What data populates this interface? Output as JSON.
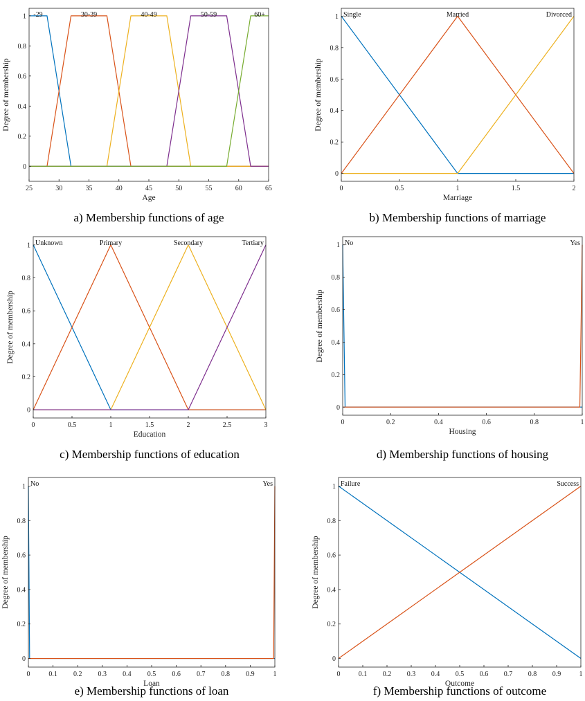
{
  "series_colors": [
    "#0072BD",
    "#D95319",
    "#EDB120",
    "#7E2F8E",
    "#77AC30"
  ],
  "chart_data": [
    {
      "type": "line",
      "caption": "a) Membership functions of age",
      "xlabel": "Age",
      "ylabel": "Degree of membership",
      "xlim": [
        25,
        65
      ],
      "ylim": [
        -0.1,
        1.05
      ],
      "xticks": [
        25,
        30,
        35,
        40,
        45,
        50,
        55,
        60,
        65
      ],
      "yticks": [
        0,
        0.2,
        0.4,
        0.6,
        0.8,
        1
      ],
      "grid": false,
      "series": [
        {
          "label": "-29",
          "x": [
            25,
            28,
            32,
            65
          ],
          "y": [
            1,
            1,
            0,
            0
          ]
        },
        {
          "label": "30-39",
          "x": [
            25,
            28,
            32,
            38,
            42,
            65
          ],
          "y": [
            0,
            0,
            1,
            1,
            0,
            0
          ]
        },
        {
          "label": "40-49",
          "x": [
            25,
            38,
            42,
            48,
            52,
            65
          ],
          "y": [
            0,
            0,
            1,
            1,
            0,
            0
          ]
        },
        {
          "label": "50-59",
          "x": [
            25,
            48,
            52,
            58,
            62,
            65
          ],
          "y": [
            0,
            0,
            1,
            1,
            0,
            0
          ]
        },
        {
          "label": "60+",
          "x": [
            25,
            58,
            62,
            65
          ],
          "y": [
            0,
            0,
            1,
            1
          ]
        }
      ]
    },
    {
      "type": "line",
      "caption": "b) Membership functions of marriage",
      "xlabel": "Marriage",
      "ylabel": "Degree of membership",
      "xlim": [
        0,
        2
      ],
      "ylim": [
        -0.05,
        1.05
      ],
      "xticks": [
        0,
        0.5,
        1,
        1.5,
        2
      ],
      "yticks": [
        0,
        0.2,
        0.4,
        0.6,
        0.8,
        1
      ],
      "grid": false,
      "series": [
        {
          "label": "Single",
          "x": [
            0,
            1,
            2
          ],
          "y": [
            1,
            0,
            0
          ]
        },
        {
          "label": "Married",
          "x": [
            0,
            1,
            2
          ],
          "y": [
            0,
            1,
            0
          ]
        },
        {
          "label": "Divorced",
          "x": [
            0,
            1,
            2
          ],
          "y": [
            0,
            0,
            1
          ]
        }
      ]
    },
    {
      "type": "line",
      "caption": "c) Membership functions of education",
      "xlabel": "Education",
      "ylabel": "Degree of membership",
      "xlim": [
        0,
        3
      ],
      "ylim": [
        -0.05,
        1.05
      ],
      "xticks": [
        0,
        0.5,
        1,
        1.5,
        2,
        2.5,
        3
      ],
      "yticks": [
        0,
        0.2,
        0.4,
        0.6,
        0.8,
        1
      ],
      "grid": false,
      "series": [
        {
          "label": "Unknown",
          "x": [
            0,
            1,
            3
          ],
          "y": [
            1,
            0,
            0
          ]
        },
        {
          "label": "Primary",
          "x": [
            0,
            1,
            2,
            3
          ],
          "y": [
            0,
            1,
            0,
            0
          ]
        },
        {
          "label": "Secondary",
          "x": [
            0,
            1,
            2,
            3
          ],
          "y": [
            0,
            0,
            1,
            0
          ]
        },
        {
          "label": "Tertiary",
          "x": [
            0,
            2,
            3
          ],
          "y": [
            0,
            0,
            1
          ]
        }
      ]
    },
    {
      "type": "line",
      "caption": "d) Membership functions of housing",
      "xlabel": "Housing",
      "ylabel": "Degree of membership",
      "xlim": [
        0,
        1
      ],
      "ylim": [
        -0.05,
        1.05
      ],
      "xticks": [
        0,
        0.2,
        0.4,
        0.6,
        0.8,
        1
      ],
      "yticks": [
        0,
        0.2,
        0.4,
        0.6,
        0.8,
        1
      ],
      "grid": false,
      "series": [
        {
          "label": "No",
          "x": [
            0,
            0.01,
            1
          ],
          "y": [
            1,
            0,
            0
          ]
        },
        {
          "label": "Yes",
          "x": [
            0,
            0.99,
            1
          ],
          "y": [
            0,
            0,
            1
          ]
        }
      ]
    },
    {
      "type": "line",
      "caption": "e) Membership functions of loan",
      "xlabel": "Loan",
      "ylabel": "Degree of membership",
      "xlim": [
        0,
        1
      ],
      "ylim": [
        -0.05,
        1.05
      ],
      "xticks": [
        0,
        0.1,
        0.2,
        0.3,
        0.4,
        0.5,
        0.6,
        0.7,
        0.8,
        0.9,
        1
      ],
      "yticks": [
        0,
        0.2,
        0.4,
        0.6,
        0.8,
        1
      ],
      "grid": false,
      "series": [
        {
          "label": "No",
          "x": [
            0,
            0.005,
            1
          ],
          "y": [
            1,
            0,
            0
          ]
        },
        {
          "label": "Yes",
          "x": [
            0,
            0.995,
            1
          ],
          "y": [
            0,
            0,
            1
          ]
        }
      ]
    },
    {
      "type": "line",
      "caption": "f) Membership functions of outcome",
      "xlabel": "Outcome",
      "ylabel": "Degree of membership",
      "xlim": [
        0,
        1
      ],
      "ylim": [
        -0.05,
        1.05
      ],
      "xticks": [
        0,
        0.1,
        0.2,
        0.3,
        0.4,
        0.5,
        0.6,
        0.7,
        0.8,
        0.9,
        1
      ],
      "yticks": [
        0,
        0.2,
        0.4,
        0.6,
        0.8,
        1
      ],
      "grid": false,
      "series": [
        {
          "label": "Failure",
          "x": [
            0,
            1
          ],
          "y": [
            1,
            0
          ]
        },
        {
          "label": "Success",
          "x": [
            0,
            1
          ],
          "y": [
            0,
            1
          ]
        }
      ]
    }
  ]
}
